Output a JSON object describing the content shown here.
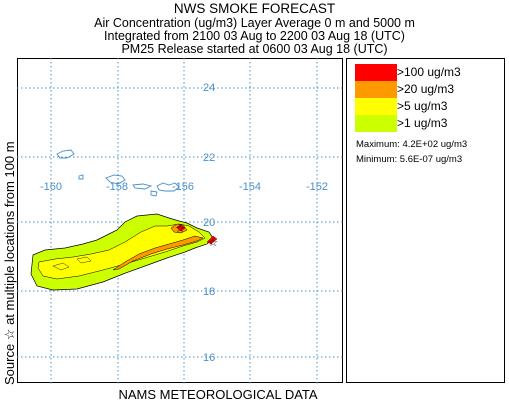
{
  "header": {
    "title": "NWS SMOKE FORECAST",
    "line1": "Air Concentration (ug/m3) Layer Average    0 m and  5000 m",
    "line2": "Integrated from 2100 03 Aug to 2200 03 Aug 18 (UTC)",
    "line3": "PM25 Release started at 0600 03 Aug 18 (UTC)"
  },
  "side_label": "Source ☆   at multiple locations      from  100 m",
  "footer": "NAMS METEOROLOGICAL DATA",
  "map": {
    "longitude_labels": [
      "-160",
      "-158",
      "-156",
      "-154",
      "-152"
    ],
    "latitude_labels": [
      "24",
      "22",
      "20",
      "18",
      "16"
    ],
    "grid_color": "#4a90c8",
    "coast_color": "#4a90c8"
  },
  "legend": {
    "items": [
      {
        "label": ">100 ug/m3",
        "color": "#ff0000"
      },
      {
        "label": ">20 ug/m3",
        "color": "#ff9900"
      },
      {
        "label": ">5 ug/m3",
        "color": "#ffff00"
      },
      {
        "label": ">1 ug/m3",
        "color": "#ccff00"
      }
    ],
    "maximum": "Maximum: 4.2E+02 ug/m3",
    "minimum": "Minimum: 5.6E-07 ug/m3"
  }
}
